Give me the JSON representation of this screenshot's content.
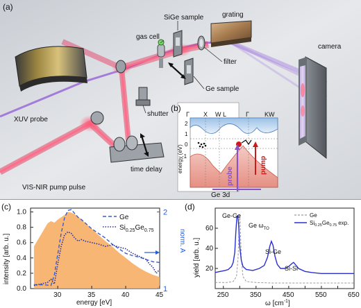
{
  "figure": {
    "panel_a": {
      "letter": "(a)",
      "labels": {
        "sige_sample": "SiGe sample",
        "grating": "grating",
        "gas_cell": "gas cell",
        "filter": "filter",
        "camera": "camera",
        "ge_sample": "Ge sample",
        "xuv_probe": "XUV probe",
        "shutter": "shutter",
        "time_delay": "time delay",
        "vis_nir": "VIS-NIR pump pulse"
      },
      "colors": {
        "beam": "#e8325a",
        "xuv": "#9b6ad8",
        "mirror": "#b9a25a",
        "background": "#dcdfe4"
      }
    },
    "panel_b": {
      "letter": "(b)",
      "k_labels_left": [
        "Γ",
        "X",
        "W"
      ],
      "k_labels_right": [
        "L",
        "Γ",
        "KW"
      ],
      "y_ticks": [
        "2",
        "1",
        "0",
        "-1"
      ],
      "ylabel": "energy (eV)",
      "probe_label": "probe",
      "pump_label": "pump",
      "core_label": "Ge 3d",
      "colors": {
        "conduction": "#a9c8e8",
        "valence": "#e8a39a",
        "probe": "#8a52c8",
        "pump": "#cc1a1a"
      }
    }
  },
  "chart_data": [
    {
      "panel": "(c)",
      "type": "line",
      "xlabel": "energy [eV]",
      "ylabel": "intensity [arb. u.]",
      "ylabel_right": "norm. A",
      "xlim": [
        26,
        45
      ],
      "ylim": [
        0,
        1.05
      ],
      "ylim_right": [
        1,
        2.05
      ],
      "x_ticks": [
        30,
        35,
        40,
        45
      ],
      "y_ticks": [
        0.0,
        0.2,
        0.4,
        0.6,
        0.8,
        1.0
      ],
      "y_ticks_right": [
        1,
        2
      ],
      "tick_labels_y": [
        "0.0",
        "0.2",
        "0.4",
        "0.6",
        "0.8",
        "1.0"
      ],
      "tick_labels_y_right": [
        "1",
        "2"
      ],
      "tick_labels_x": [
        "30",
        "35",
        "40",
        "45"
      ],
      "legend": [
        "Ge",
        "Si",
        "0.25",
        "Ge",
        "0.75"
      ],
      "filled_spectrum": {
        "color": "#f7a95c",
        "x": [
          26.5,
          27.5,
          28.5,
          29.0,
          29.5,
          30.0,
          30.5,
          31.0,
          31.5,
          32.0,
          32.5,
          33.0,
          33.5,
          34.0,
          35.0,
          36.0,
          37.0,
          38.0,
          39.0,
          40.0,
          41.0,
          42.0,
          43.0,
          44.0,
          45.0
        ],
        "y": [
          0.55,
          0.7,
          0.85,
          0.88,
          0.86,
          0.9,
          0.93,
          0.96,
          1.0,
          0.99,
          0.97,
          0.94,
          0.9,
          0.86,
          0.78,
          0.7,
          0.62,
          0.55,
          0.47,
          0.4,
          0.33,
          0.27,
          0.22,
          0.18,
          0.15
        ]
      },
      "series": [
        {
          "name": "Ge",
          "color": "#3a5cc9",
          "x": [
            26.5,
            28.0,
            29.0,
            29.5,
            30.0,
            30.5,
            31.0,
            31.5,
            32.0,
            32.5,
            33.0,
            33.5,
            34.0,
            35.0,
            36.0,
            37.0,
            38.0,
            39.0,
            40.0,
            41.0,
            42.0,
            43.0,
            44.0,
            45.0
          ],
          "y": [
            1.05,
            1.05,
            1.04,
            1.18,
            1.45,
            1.72,
            1.92,
            2.02,
            2.03,
            1.98,
            1.93,
            1.9,
            1.86,
            1.78,
            1.72,
            1.66,
            1.58,
            1.52,
            1.46,
            1.43,
            1.41,
            1.38,
            1.35,
            1.34
          ]
        },
        {
          "name": "Si0.25Ge0.75",
          "color": "#2a2f9a",
          "x": [
            26.5,
            27.5,
            28.5,
            29.0,
            29.5,
            30.0,
            30.5,
            31.0,
            31.5,
            32.0,
            32.5,
            33.0,
            33.5,
            34.0,
            35.0,
            36.0,
            37.0,
            38.0,
            39.0,
            40.0,
            41.0,
            42.0,
            43.0,
            43.5,
            44.0,
            44.5,
            45.0
          ],
          "y": [
            1.04,
            1.06,
            1.08,
            1.12,
            1.06,
            1.32,
            1.55,
            1.7,
            1.74,
            1.72,
            1.66,
            1.62,
            1.64,
            1.62,
            1.6,
            1.58,
            1.55,
            1.57,
            1.54,
            1.52,
            1.46,
            1.42,
            1.38,
            1.32,
            1.28,
            1.2,
            1.25
          ]
        }
      ]
    },
    {
      "panel": "(d)",
      "type": "line",
      "xlabel": "ω [cm",
      "xlabel_sup": "-1",
      "xlabel_end": "]",
      "ylabel": "yield [arb. u.]",
      "xlim": [
        225,
        650
      ],
      "ylim": [
        0,
        80
      ],
      "x_ticks": [
        250,
        300,
        350,
        400,
        450,
        500,
        550,
        600,
        650
      ],
      "y_ticks": [
        20,
        40,
        60
      ],
      "tick_labels_x": [
        "250",
        "300",
        "350",
        "400",
        "450",
        "500",
        "550",
        "600",
        "650"
      ],
      "tick_labels_y": [
        "20",
        "40",
        "60"
      ],
      "legend": [
        "Ge",
        "Si",
        "0.25",
        "Ge",
        "0.75",
        "exp."
      ],
      "annotations": {
        "ge_ge": "Ge-Ge",
        "ge_omega": "Ge ω",
        "ge_omega_sub": "TO",
        "si_ge": "Si-Ge",
        "si_si": "Si-Si"
      },
      "series": [
        {
          "name": "Ge",
          "color": "#9a9a9a",
          "x": [
            225,
            260,
            280,
            290,
            295,
            298,
            300,
            302,
            305,
            310,
            320,
            350,
            400,
            500,
            650
          ],
          "y": [
            6,
            6,
            7,
            12,
            30,
            60,
            74,
            60,
            30,
            12,
            7,
            6,
            5.5,
            5.5,
            5.5
          ]
        },
        {
          "name": "Si0.25Ge0.75 exp.",
          "color": "#2a2fd0",
          "x": [
            225,
            240,
            255,
            265,
            275,
            280,
            285,
            288,
            291,
            294,
            297,
            300,
            305,
            310,
            320,
            340,
            360,
            375,
            385,
            392,
            397,
            402,
            408,
            415,
            425,
            440,
            450,
            460,
            465,
            470,
            480,
            500,
            520,
            550,
            580,
            610,
            650
          ],
          "y": [
            16,
            17,
            18,
            19,
            22,
            26,
            36,
            55,
            70,
            73,
            62,
            42,
            28,
            22,
            19,
            18,
            20,
            23,
            31,
            42,
            47,
            43,
            32,
            24,
            20,
            20,
            22,
            25,
            26,
            24,
            20,
            17,
            16,
            15,
            15,
            15,
            15
          ]
        }
      ]
    }
  ]
}
